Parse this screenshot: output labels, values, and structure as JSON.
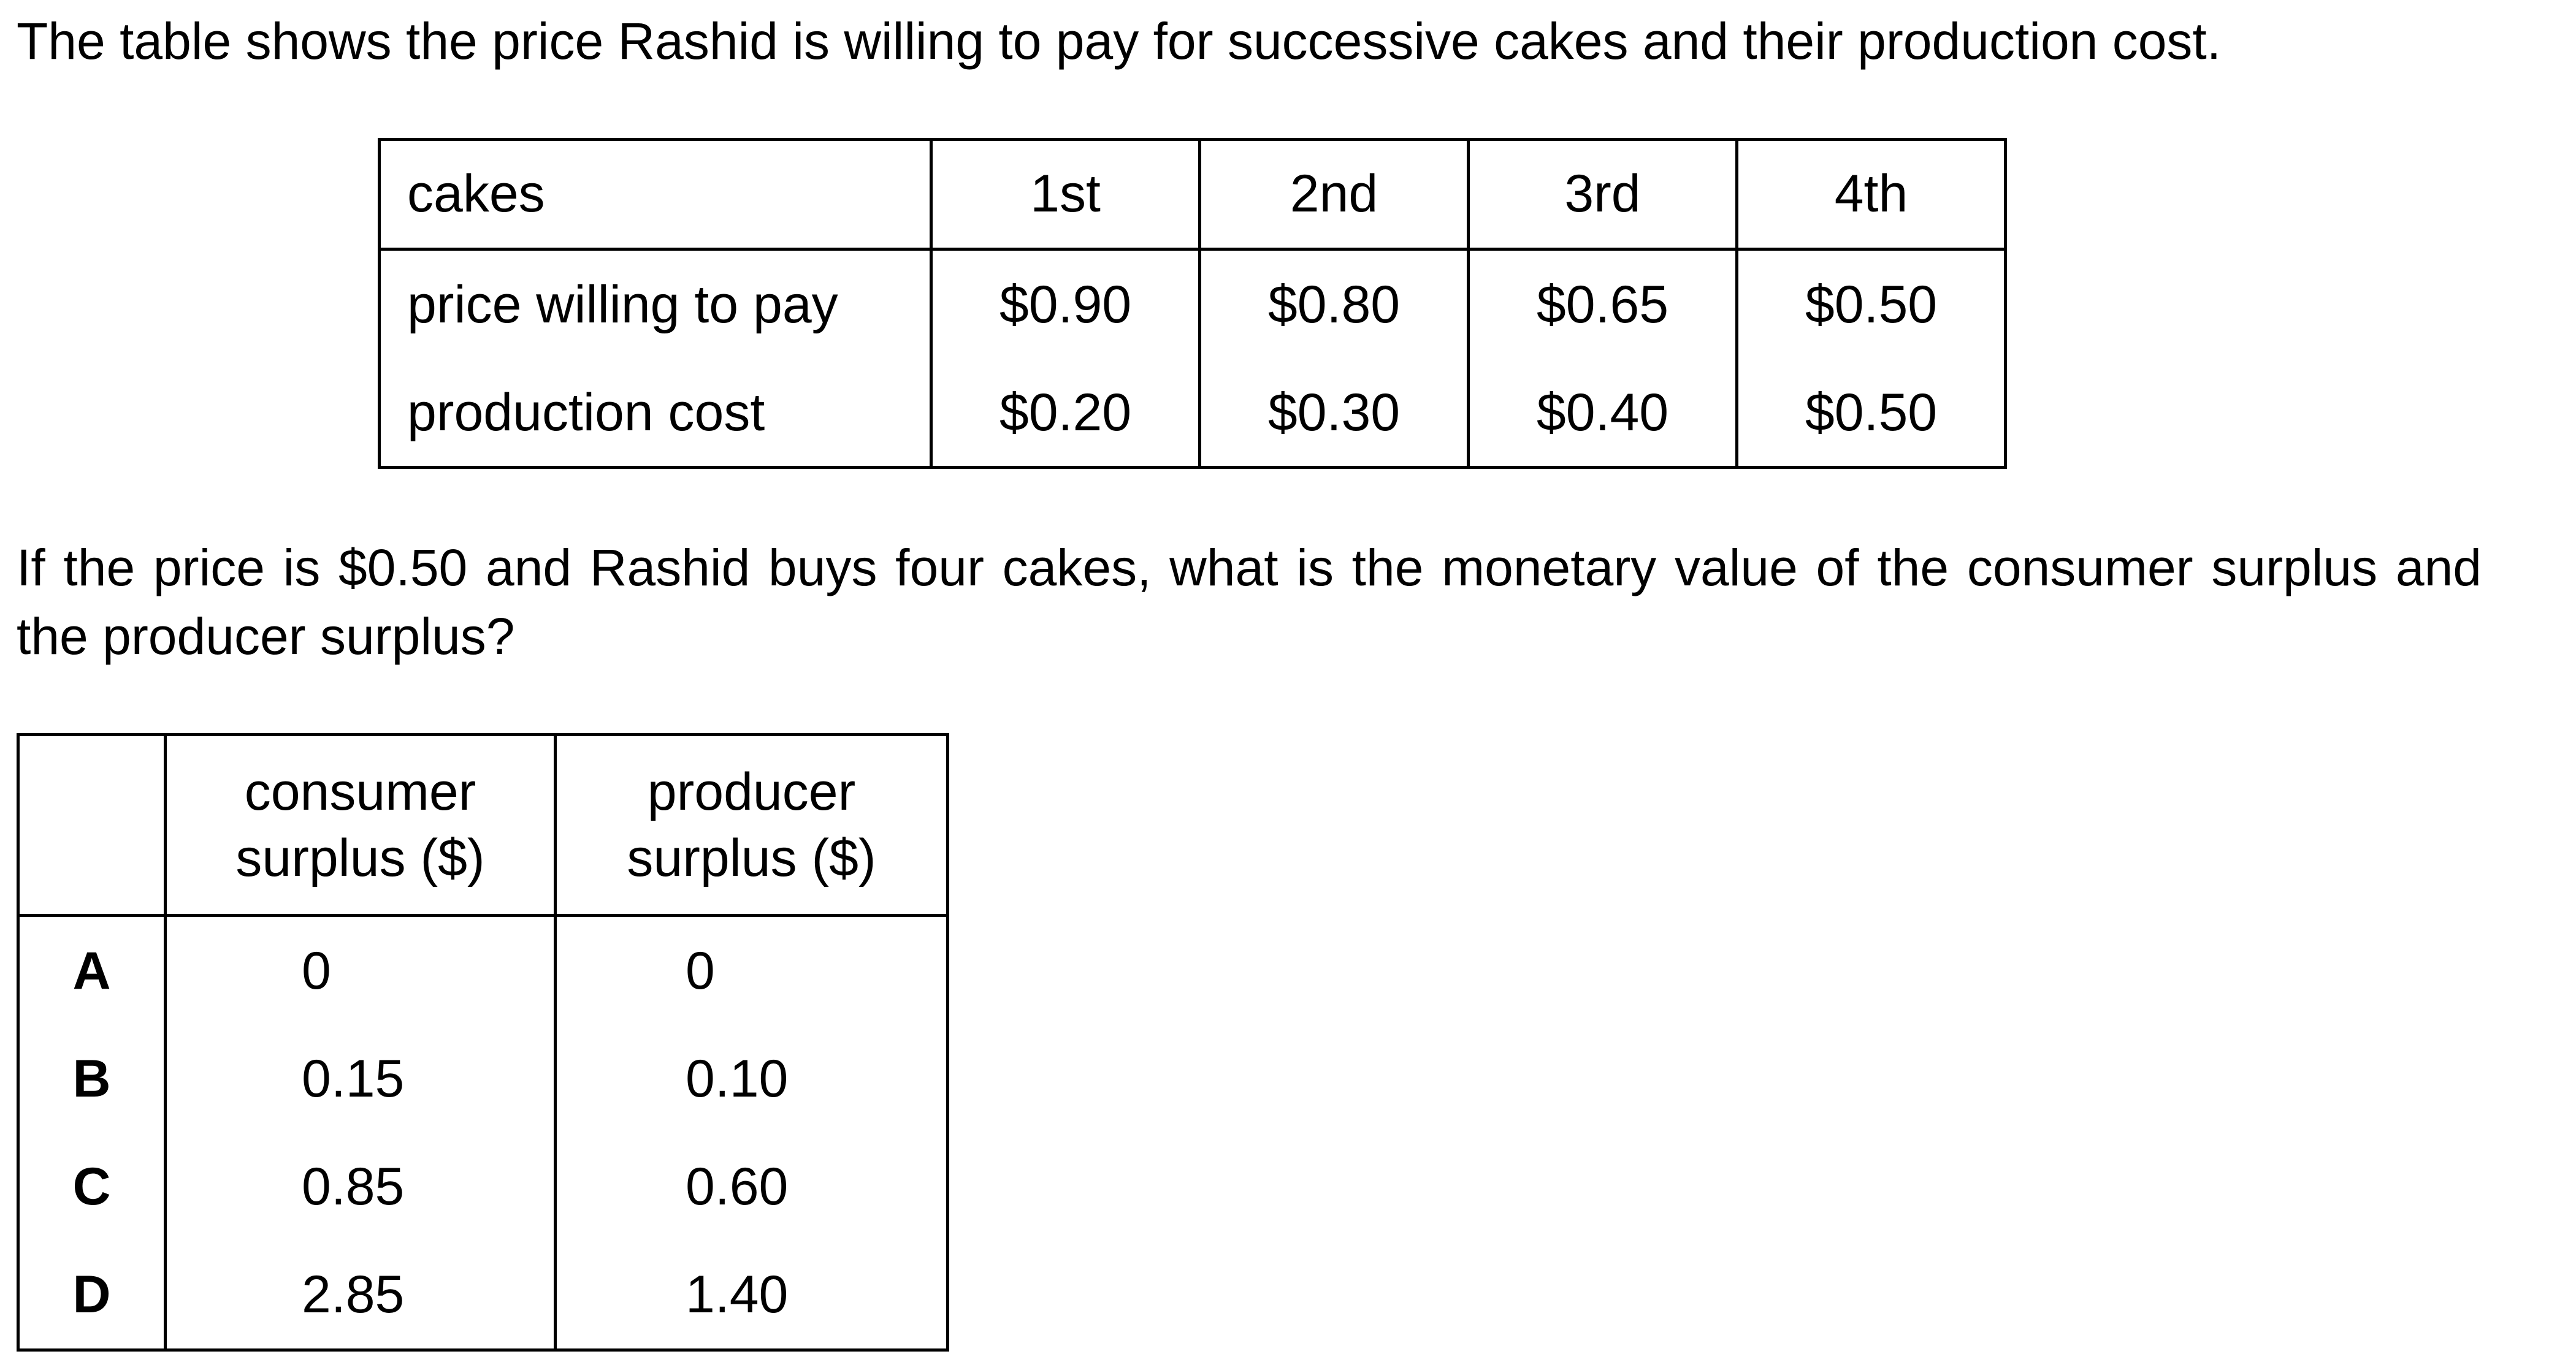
{
  "intro": "The table shows the price Rashid is willing to pay for successive cakes and their production cost.",
  "cake_table": {
    "header_label": "cakes",
    "columns": [
      "1st",
      "2nd",
      "3rd",
      "4th"
    ],
    "rows": [
      {
        "label": "price willing to pay",
        "values": [
          "$0.90",
          "$0.80",
          "$0.65",
          "$0.50"
        ]
      },
      {
        "label": "production cost",
        "values": [
          "$0.20",
          "$0.30",
          "$0.40",
          "$0.50"
        ]
      }
    ]
  },
  "question": "If the price is $0.50 and Rashid buys four cakes, what is the monetary value of the consumer surplus and the producer surplus?",
  "answer_table": {
    "headers": {
      "consumer": [
        "consumer",
        "surplus ($)"
      ],
      "producer": [
        "producer",
        "surplus ($)"
      ]
    },
    "options": [
      {
        "letter": "A",
        "consumer": "0",
        "producer": "0"
      },
      {
        "letter": "B",
        "consumer": "0.15",
        "producer": "0.10"
      },
      {
        "letter": "C",
        "consumer": "0.85",
        "producer": "0.60"
      },
      {
        "letter": "D",
        "consumer": "2.85",
        "producer": "1.40"
      }
    ]
  }
}
